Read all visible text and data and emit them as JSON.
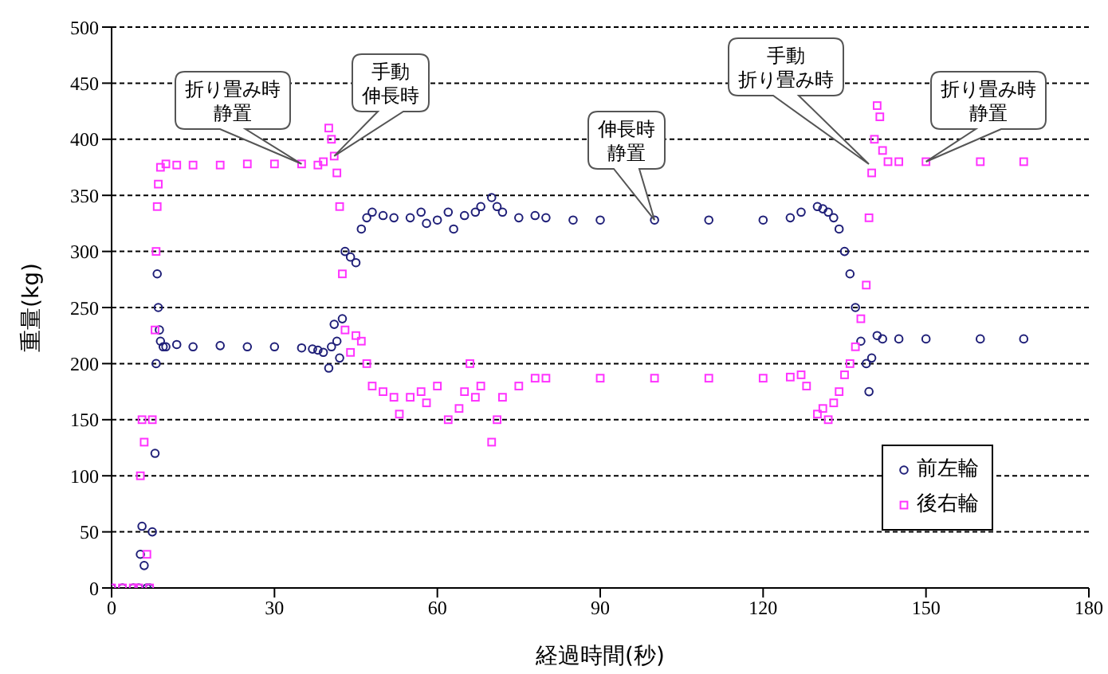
{
  "chart_data": {
    "type": "scatter",
    "xlabel": "経過時間(秒)",
    "ylabel": "重量(kg)",
    "xlim": [
      0,
      180
    ],
    "xticks": [
      0,
      30,
      60,
      90,
      120,
      150,
      180
    ],
    "ylim": [
      0,
      500
    ],
    "yticks": [
      0,
      50,
      100,
      150,
      200,
      250,
      300,
      350,
      400,
      450,
      500
    ],
    "grid": "y",
    "legend": "bottom right",
    "annotations": [
      {
        "text": "折り畳み時静置",
        "x": 35,
        "y": 378
      },
      {
        "text": "手動伸長時",
        "x": 41,
        "y": 385
      },
      {
        "text": "伸長時静置",
        "x": 100,
        "y": 328
      },
      "手動折り畳み時",
      {
        "text": "折り畳み時静置",
        "x": 150,
        "y": 380
      }
    ],
    "series": [
      {
        "name": "前左輪",
        "color": "#1f1f78",
        "marker": "circle",
        "x": [
          0,
          2,
          4,
          5,
          5.3,
          5.6,
          6,
          6.5,
          7,
          7.5,
          8,
          8.2,
          8.4,
          8.6,
          8.8,
          9,
          9.5,
          10,
          12,
          15,
          20,
          25,
          30,
          35,
          37,
          38,
          39,
          40,
          40.5,
          41,
          41.5,
          42,
          42.5,
          43,
          44,
          45,
          46,
          47,
          48,
          50,
          52,
          55,
          57,
          58,
          60,
          62,
          63,
          65,
          67,
          68,
          70,
          71,
          72,
          75,
          78,
          80,
          85,
          90,
          100,
          110,
          120,
          125,
          127,
          130,
          131,
          132,
          133,
          134,
          135,
          136,
          137,
          138,
          139,
          139.5,
          140,
          141,
          142,
          145,
          150,
          160,
          168
        ],
        "values": [
          0,
          0,
          0,
          0,
          30,
          55,
          20,
          0,
          0,
          50,
          120,
          200,
          280,
          250,
          230,
          220,
          215,
          215,
          217,
          215,
          216,
          215,
          215,
          214,
          213,
          212,
          210,
          196,
          215,
          235,
          220,
          205,
          240,
          300,
          295,
          290,
          320,
          330,
          335,
          332,
          330,
          330,
          335,
          325,
          328,
          335,
          320,
          332,
          335,
          340,
          348,
          340,
          335,
          330,
          332,
          330,
          328,
          328,
          328,
          328,
          328,
          330,
          335,
          340,
          338,
          335,
          330,
          320,
          300,
          280,
          250,
          220,
          200,
          175,
          205,
          225,
          222,
          222,
          222,
          222,
          222
        ]
      },
      {
        "name": "後右輪",
        "color": "#ff33ff",
        "marker": "square",
        "x": [
          0,
          2,
          4,
          5,
          5.3,
          5.6,
          6,
          6.5,
          7,
          7.5,
          8,
          8.2,
          8.4,
          8.6,
          9,
          10,
          12,
          15,
          20,
          25,
          30,
          35,
          38,
          39,
          40,
          40.5,
          41,
          41.5,
          42,
          42.5,
          43,
          44,
          45,
          46,
          47,
          48,
          50,
          52,
          53,
          55,
          57,
          58,
          60,
          62,
          64,
          65,
          66,
          67,
          68,
          70,
          71,
          72,
          75,
          78,
          80,
          90,
          100,
          110,
          120,
          125,
          127,
          128,
          130,
          131,
          132,
          133,
          134,
          135,
          136,
          137,
          138,
          139,
          139.5,
          140,
          140.5,
          141,
          141.5,
          142,
          143,
          145,
          150,
          160,
          168
        ],
        "values": [
          0,
          0,
          0,
          0,
          100,
          150,
          130,
          30,
          0,
          150,
          230,
          300,
          340,
          360,
          375,
          378,
          377,
          377,
          377,
          378,
          378,
          378,
          377,
          380,
          410,
          400,
          385,
          370,
          340,
          280,
          230,
          210,
          225,
          220,
          200,
          180,
          175,
          170,
          155,
          170,
          175,
          165,
          180,
          150,
          160,
          175,
          200,
          170,
          180,
          130,
          150,
          170,
          180,
          187,
          187,
          187,
          187,
          187,
          187,
          188,
          190,
          180,
          155,
          160,
          150,
          165,
          175,
          190,
          200,
          215,
          240,
          270,
          330,
          370,
          400,
          430,
          420,
          390,
          380,
          380,
          380,
          380,
          380
        ]
      }
    ]
  }
}
